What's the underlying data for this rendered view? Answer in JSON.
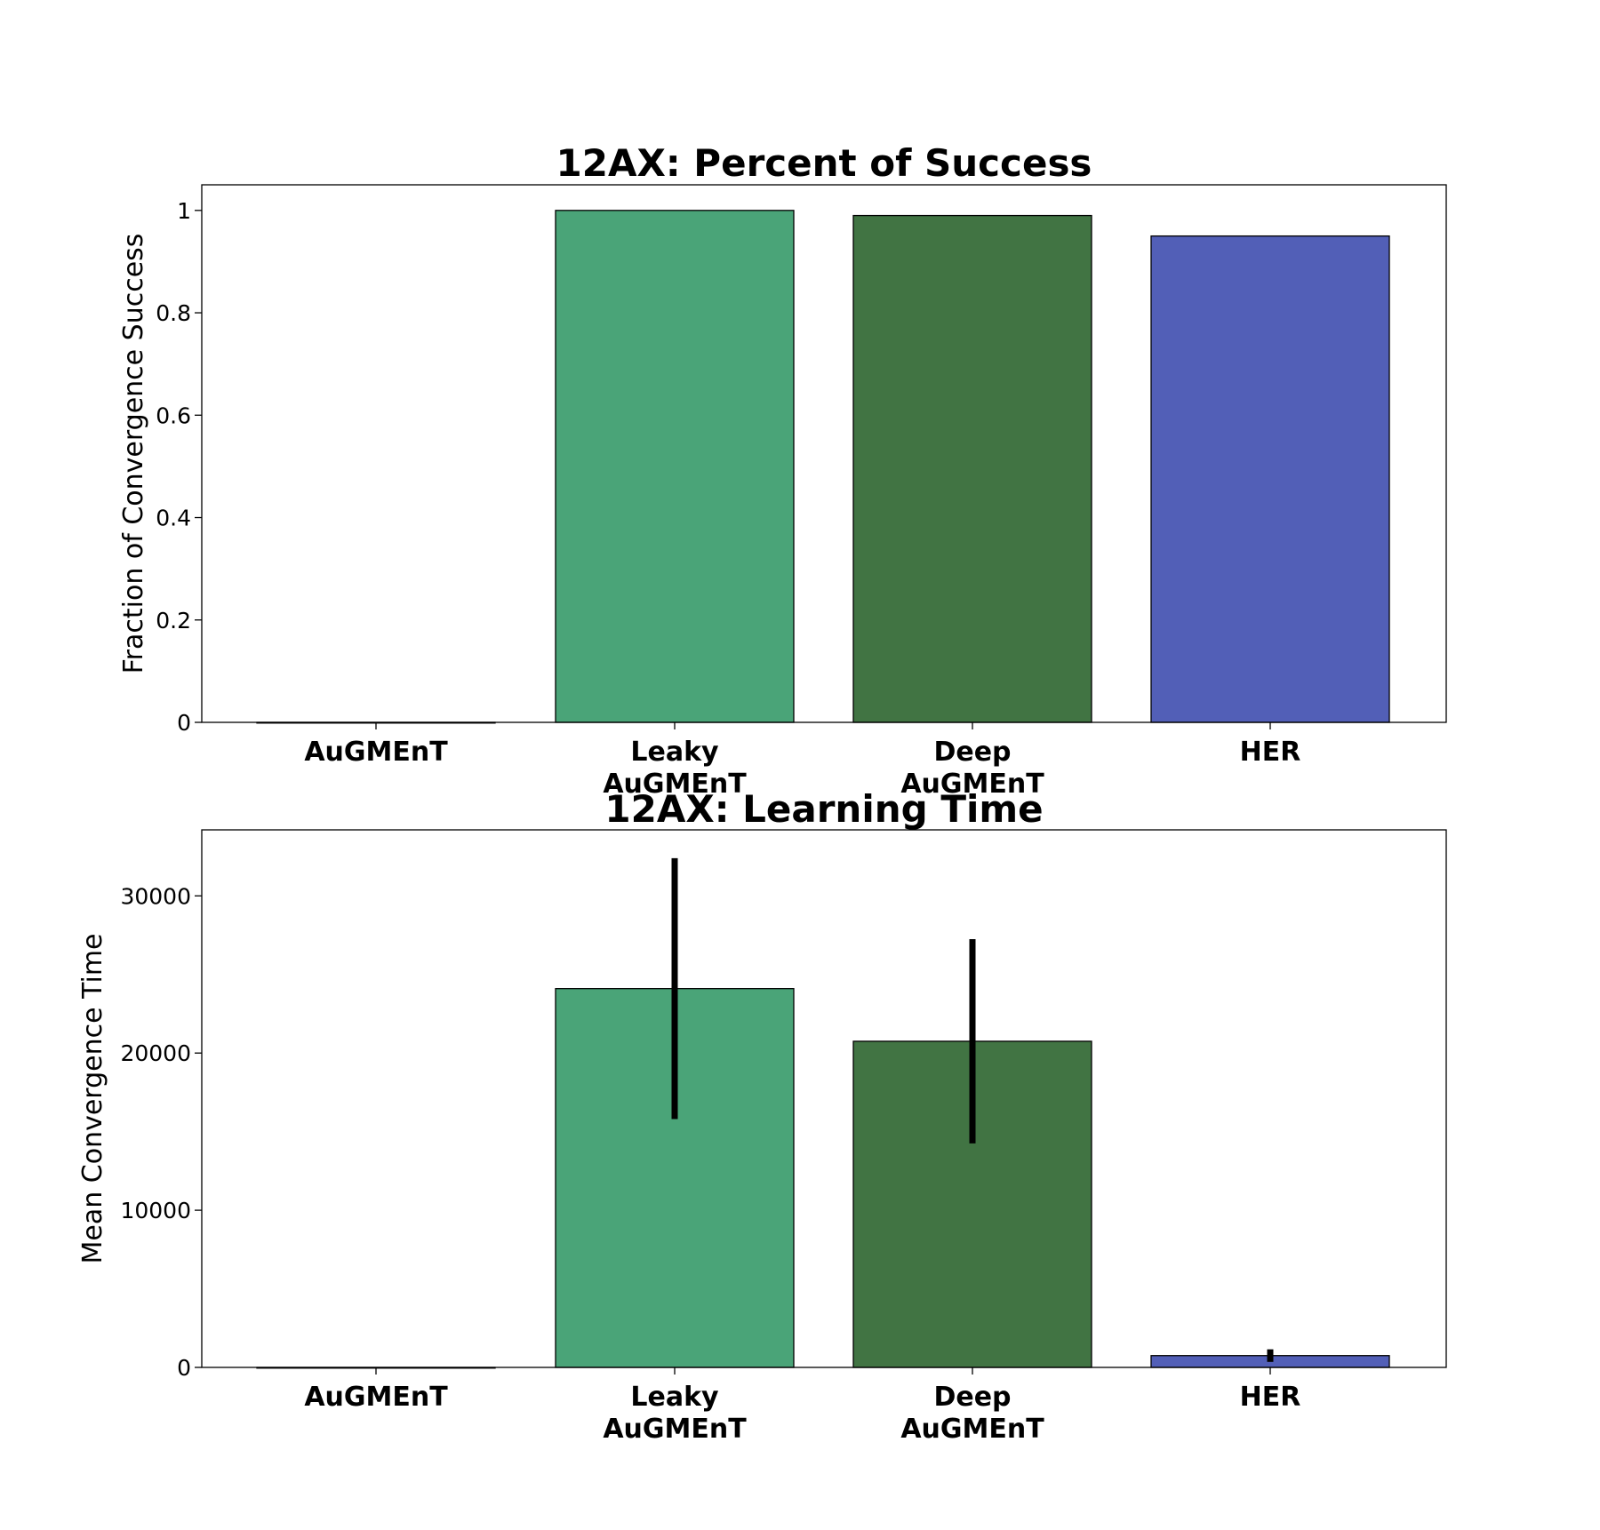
{
  "chart_data": [
    {
      "type": "bar",
      "title": "12AX: Percent of Success",
      "xlabel": "",
      "ylabel": "Fraction of Convergence Success",
      "categories": [
        "AuGMEnT",
        "Leaky\nAuGMEnT",
        "Deep\nAuGMEnT",
        "HER"
      ],
      "values": [
        0,
        1.0,
        0.99,
        0.95
      ],
      "colors": [
        "#4aa478",
        "#4aa478",
        "#417443",
        "#525fb7"
      ],
      "ylim": [
        0,
        1.05
      ],
      "yticks": [
        0,
        0.2,
        0.4,
        0.6,
        0.8,
        1
      ],
      "ytick_labels": [
        "0",
        "0.2",
        "0.4",
        "0.6",
        "0.8",
        "1"
      ],
      "grid": false
    },
    {
      "type": "bar",
      "title": "12AX: Learning Time",
      "xlabel": "",
      "ylabel": "Mean Convergence Time",
      "categories": [
        "AuGMEnT",
        "Leaky\nAuGMEnT",
        "Deep\nAuGMEnT",
        "HER"
      ],
      "values": [
        0,
        24100,
        20750,
        750
      ],
      "error": [
        0,
        8300,
        6500,
        400
      ],
      "colors": [
        "#4aa478",
        "#4aa478",
        "#417443",
        "#525fb7"
      ],
      "ylim": [
        0,
        34200
      ],
      "yticks": [
        0,
        10000,
        20000,
        30000
      ],
      "ytick_labels": [
        "0",
        "10000",
        "20000",
        "30000"
      ],
      "grid": false
    }
  ]
}
